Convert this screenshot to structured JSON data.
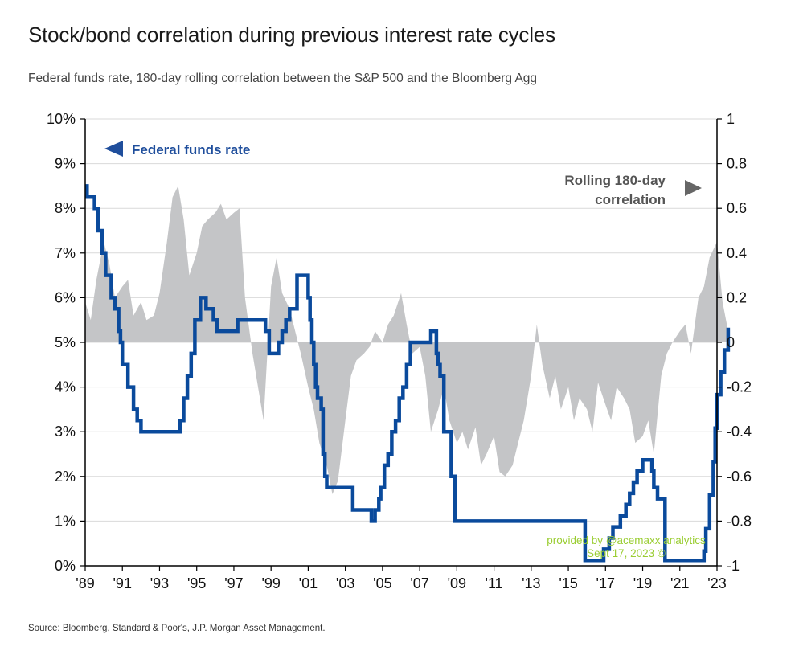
{
  "header": {
    "title": "Stock/bond correlation during previous interest rate cycles",
    "subtitle": "Federal funds rate, 180-day rolling correlation between the S&P 500 and the Bloomberg Agg"
  },
  "footer": {
    "source": "Source: Bloomberg, Standard & Poor's, J.P. Morgan Asset Management."
  },
  "watermark": {
    "line1": "provided by @acemaxx analytics",
    "line2": "Sept 17, 2023 ©"
  },
  "colors": {
    "ffr": "#0a4a9c",
    "corr": "#c4c5c7",
    "grid": "#d9d9d9",
    "watermark": "#9acd32"
  },
  "chart_data": {
    "type": "line",
    "title": "Stock/bond correlation during previous interest rate cycles",
    "legend": {
      "ffr": "Federal funds rate",
      "corr_line1": "Rolling 180-day",
      "corr_line2": "correlation"
    },
    "xlim": [
      1989,
      2023
    ],
    "x_tick_labels": [
      "'89",
      "'91",
      "'93",
      "'95",
      "'97",
      "'99",
      "'01",
      "'03",
      "'05",
      "'07",
      "'09",
      "'11",
      "'13",
      "'15",
      "'17",
      "'19",
      "'21",
      "'23"
    ],
    "y_left": {
      "ylim": [
        0,
        10
      ],
      "tick_labels": [
        "0%",
        "1%",
        "2%",
        "3%",
        "4%",
        "5%",
        "6%",
        "7%",
        "8%",
        "9%",
        "10%"
      ]
    },
    "y_right": {
      "ylim": [
        -1,
        1
      ],
      "tick_labels": [
        "-1",
        "-0.8",
        "-0.6",
        "-0.4",
        "-0.2",
        "0",
        "0.2",
        "0.4",
        "0.6",
        "0.8",
        "1"
      ]
    },
    "grid": true,
    "series": [
      {
        "name": "Federal funds rate",
        "axis": "left",
        "style": "step",
        "x": [
          1989.0,
          1989.1,
          1989.5,
          1989.7,
          1989.9,
          1990.1,
          1990.4,
          1990.6,
          1990.8,
          1990.9,
          1991.0,
          1991.3,
          1991.6,
          1991.8,
          1992.0,
          1992.7,
          1993.4,
          1993.9,
          1994.1,
          1994.3,
          1994.5,
          1994.7,
          1994.9,
          1995.2,
          1995.5,
          1995.9,
          1996.1,
          1996.5,
          1997.2,
          1997.6,
          1997.7,
          1998.7,
          1998.9,
          1999.0,
          1999.4,
          1999.6,
          1999.8,
          2000.0,
          2000.4,
          2000.9,
          2001.0,
          2001.1,
          2001.2,
          2001.3,
          2001.4,
          2001.5,
          2001.7,
          2001.8,
          2001.9,
          2002.0,
          2002.8,
          2003.4,
          2004.4,
          2004.6,
          2004.8,
          2004.9,
          2005.1,
          2005.3,
          2005.5,
          2005.7,
          2005.9,
          2006.1,
          2006.3,
          2006.5,
          2007.6,
          2007.7,
          2007.9,
          2008.0,
          2008.1,
          2008.3,
          2008.7,
          2008.9,
          2015.9,
          2016.9,
          2017.2,
          2017.4,
          2017.8,
          2018.1,
          2018.3,
          2018.5,
          2018.7,
          2019.0,
          2019.5,
          2019.6,
          2019.8,
          2020.2,
          2022.1,
          2022.3,
          2022.4,
          2022.6,
          2022.8,
          2022.9,
          2023.0,
          2023.2,
          2023.4,
          2023.6
        ],
        "y": [
          8.5,
          8.25,
          8.0,
          7.5,
          7.0,
          6.5,
          6.0,
          5.75,
          5.25,
          5.0,
          4.5,
          4.0,
          3.5,
          3.25,
          3.0,
          3.0,
          3.0,
          3.0,
          3.25,
          3.75,
          4.25,
          4.75,
          5.5,
          6.0,
          5.75,
          5.5,
          5.25,
          5.25,
          5.5,
          5.5,
          5.5,
          5.25,
          4.75,
          4.75,
          5.0,
          5.25,
          5.5,
          5.75,
          6.5,
          6.5,
          6.0,
          5.5,
          5.0,
          4.5,
          4.0,
          3.75,
          3.5,
          2.5,
          2.0,
          1.75,
          1.75,
          1.25,
          1.0,
          1.25,
          1.5,
          1.75,
          2.25,
          2.5,
          3.0,
          3.25,
          3.75,
          4.0,
          4.5,
          5.0,
          5.25,
          5.25,
          4.75,
          4.5,
          4.25,
          3.0,
          2.0,
          1.0,
          0.12,
          0.37,
          0.62,
          0.87,
          1.12,
          1.37,
          1.62,
          1.87,
          2.12,
          2.37,
          2.12,
          1.75,
          1.5,
          0.12,
          0.12,
          0.33,
          0.83,
          1.58,
          2.33,
          3.08,
          3.83,
          4.33,
          4.83,
          5.33
        ]
      },
      {
        "name": "Rolling 180-day correlation",
        "axis": "right",
        "style": "area",
        "x": [
          1989.0,
          1989.3,
          1989.6,
          1990.0,
          1990.3,
          1990.6,
          1991.0,
          1991.3,
          1991.6,
          1992.0,
          1992.3,
          1992.7,
          1993.0,
          1993.4,
          1993.7,
          1994.0,
          1994.3,
          1994.6,
          1995.0,
          1995.3,
          1995.6,
          1996.0,
          1996.3,
          1996.6,
          1997.0,
          1997.3,
          1997.6,
          1998.0,
          1998.3,
          1998.6,
          1999.0,
          1999.3,
          1999.6,
          2000.0,
          2000.3,
          2000.6,
          2001.0,
          2001.3,
          2001.6,
          2002.0,
          2002.3,
          2002.6,
          2003.0,
          2003.3,
          2003.6,
          2004.0,
          2004.3,
          2004.6,
          2005.0,
          2005.3,
          2005.6,
          2006.0,
          2006.3,
          2006.6,
          2007.0,
          2007.3,
          2007.6,
          2008.0,
          2008.3,
          2008.6,
          2009.0,
          2009.3,
          2009.6,
          2010.0,
          2010.3,
          2010.6,
          2011.0,
          2011.3,
          2011.6,
          2012.0,
          2012.3,
          2012.6,
          2013.0,
          2013.3,
          2013.6,
          2014.0,
          2014.3,
          2014.6,
          2015.0,
          2015.3,
          2015.6,
          2016.0,
          2016.3,
          2016.6,
          2017.0,
          2017.3,
          2017.6,
          2018.0,
          2018.3,
          2018.6,
          2019.0,
          2019.3,
          2019.6,
          2020.0,
          2020.3,
          2020.6,
          2021.0,
          2021.3,
          2021.6,
          2022.0,
          2022.3,
          2022.6,
          2023.0,
          2023.3,
          2023.6
        ],
        "y": [
          0.18,
          0.1,
          0.28,
          0.45,
          0.35,
          0.2,
          0.25,
          0.28,
          0.12,
          0.18,
          0.1,
          0.12,
          0.22,
          0.45,
          0.65,
          0.7,
          0.55,
          0.3,
          0.4,
          0.52,
          0.55,
          0.58,
          0.62,
          0.55,
          0.58,
          0.6,
          0.2,
          -0.05,
          -0.2,
          -0.35,
          0.25,
          0.38,
          0.22,
          0.15,
          0.05,
          -0.05,
          -0.2,
          -0.3,
          -0.45,
          -0.55,
          -0.68,
          -0.62,
          -0.35,
          -0.15,
          -0.08,
          -0.05,
          -0.02,
          0.05,
          0.0,
          0.08,
          0.12,
          0.22,
          0.08,
          -0.05,
          -0.02,
          -0.15,
          -0.4,
          -0.3,
          -0.2,
          -0.35,
          -0.45,
          -0.4,
          -0.48,
          -0.38,
          -0.55,
          -0.5,
          -0.42,
          -0.58,
          -0.6,
          -0.55,
          -0.45,
          -0.35,
          -0.15,
          0.08,
          -0.1,
          -0.25,
          -0.15,
          -0.3,
          -0.2,
          -0.35,
          -0.25,
          -0.3,
          -0.4,
          -0.18,
          -0.28,
          -0.35,
          -0.2,
          -0.25,
          -0.3,
          -0.45,
          -0.42,
          -0.35,
          -0.5,
          -0.15,
          -0.05,
          0.0,
          0.05,
          0.08,
          -0.05,
          0.2,
          0.25,
          0.38,
          0.45,
          0.18,
          0.05
        ]
      }
    ]
  }
}
